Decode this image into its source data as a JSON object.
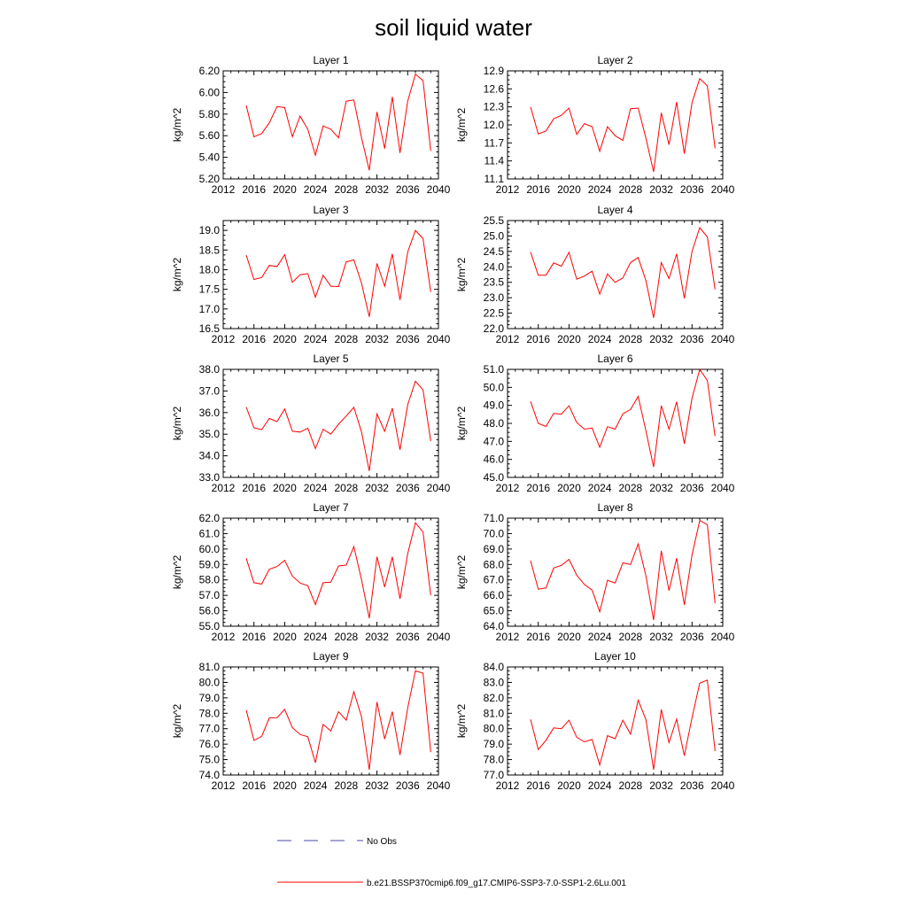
{
  "figure": {
    "title": "soil liquid water",
    "legend": [
      {
        "label": "No Obs",
        "color": "#4a4aa8",
        "style": "dashed"
      },
      {
        "label": "b.e21.BSSP370cmip6.f09_g17.CMIP6-SSP3-7.0-SSP1-2.6Lu.001",
        "color": "#ff0000",
        "style": "solid"
      }
    ]
  },
  "chart_data": [
    {
      "type": "line",
      "title": "Layer 1",
      "xlabel": "",
      "ylabel": "kg/m^2",
      "xlim": [
        2012,
        2040
      ],
      "xticks": [
        2012,
        2016,
        2020,
        2024,
        2028,
        2032,
        2036,
        2040
      ],
      "ylim": [
        5.2,
        6.2
      ],
      "yticks": [
        "5.20",
        "5.40",
        "5.60",
        "5.80",
        "6.00",
        "6.20"
      ],
      "series": [
        {
          "color": "#ff0000",
          "x": [
            2015,
            2016,
            2017,
            2018,
            2019,
            2020,
            2021,
            2022,
            2023,
            2024,
            2025,
            2026,
            2027,
            2028,
            2029,
            2030,
            2031,
            2032,
            2033,
            2034,
            2035,
            2036,
            2037,
            2038,
            2039
          ],
          "y": [
            5.88,
            5.59,
            5.62,
            5.72,
            5.87,
            5.86,
            5.59,
            5.78,
            5.66,
            5.42,
            5.69,
            5.66,
            5.58,
            5.92,
            5.93,
            5.58,
            5.28,
            5.82,
            5.48,
            5.96,
            5.44,
            5.92,
            6.17,
            6.11,
            5.46
          ]
        }
      ]
    },
    {
      "type": "line",
      "title": "Layer 2",
      "xlabel": "",
      "ylabel": "kg/m^2",
      "xlim": [
        2012,
        2040
      ],
      "xticks": [
        2012,
        2016,
        2020,
        2024,
        2028,
        2032,
        2036,
        2040
      ],
      "ylim": [
        11.1,
        12.9
      ],
      "yticks": [
        "11.1",
        "11.4",
        "11.7",
        "12.0",
        "12.3",
        "12.6",
        "12.9"
      ],
      "series": [
        {
          "color": "#ff0000",
          "x": [
            2015,
            2016,
            2017,
            2018,
            2019,
            2020,
            2021,
            2022,
            2023,
            2024,
            2025,
            2026,
            2027,
            2028,
            2029,
            2030,
            2031,
            2032,
            2033,
            2034,
            2035,
            2036,
            2037,
            2038,
            2039
          ],
          "y": [
            12.3,
            11.85,
            11.9,
            12.1,
            12.16,
            12.28,
            11.84,
            12.02,
            11.97,
            11.56,
            11.97,
            11.82,
            11.74,
            12.27,
            12.28,
            11.78,
            11.22,
            12.2,
            11.67,
            12.38,
            11.52,
            12.37,
            12.77,
            12.65,
            11.61
          ]
        }
      ]
    },
    {
      "type": "line",
      "title": "Layer 3",
      "xlabel": "",
      "ylabel": "kg/m^2",
      "xlim": [
        2012,
        2040
      ],
      "xticks": [
        2012,
        2016,
        2020,
        2024,
        2028,
        2032,
        2036,
        2040
      ],
      "ylim": [
        16.5,
        19.25
      ],
      "yticks": [
        "16.5",
        "17.0",
        "17.5",
        "18.0",
        "18.5",
        "19.0"
      ],
      "series": [
        {
          "color": "#ff0000",
          "x": [
            2015,
            2016,
            2017,
            2018,
            2019,
            2020,
            2021,
            2022,
            2023,
            2024,
            2025,
            2026,
            2027,
            2028,
            2029,
            2030,
            2031,
            2032,
            2033,
            2034,
            2035,
            2036,
            2037,
            2038,
            2039
          ],
          "y": [
            18.37,
            17.75,
            17.8,
            18.11,
            18.08,
            18.38,
            17.68,
            17.87,
            17.9,
            17.3,
            17.86,
            17.58,
            17.57,
            18.2,
            18.25,
            17.65,
            16.8,
            18.16,
            17.58,
            18.4,
            17.23,
            18.45,
            19.0,
            18.79,
            17.43
          ]
        }
      ]
    },
    {
      "type": "line",
      "title": "Layer 4",
      "xlabel": "",
      "ylabel": "kg/m^2",
      "xlim": [
        2012,
        2040
      ],
      "xticks": [
        2012,
        2016,
        2020,
        2024,
        2028,
        2032,
        2036,
        2040
      ],
      "ylim": [
        22.0,
        25.5
      ],
      "yticks": [
        "22.0",
        "22.5",
        "23.0",
        "23.5",
        "24.0",
        "24.5",
        "25.0",
        "25.5"
      ],
      "series": [
        {
          "color": "#ff0000",
          "x": [
            2015,
            2016,
            2017,
            2018,
            2019,
            2020,
            2021,
            2022,
            2023,
            2024,
            2025,
            2026,
            2027,
            2028,
            2029,
            2030,
            2031,
            2032,
            2033,
            2034,
            2035,
            2036,
            2037,
            2038,
            2039
          ],
          "y": [
            24.48,
            23.73,
            23.73,
            24.13,
            24.02,
            24.47,
            23.6,
            23.7,
            23.86,
            23.12,
            23.77,
            23.5,
            23.64,
            24.14,
            24.3,
            23.56,
            22.35,
            24.14,
            23.62,
            24.42,
            22.98,
            24.5,
            25.27,
            24.97,
            23.27
          ]
        }
      ]
    },
    {
      "type": "line",
      "title": "Layer 5",
      "xlabel": "",
      "ylabel": "kg/m^2",
      "xlim": [
        2012,
        2040
      ],
      "xticks": [
        2012,
        2016,
        2020,
        2024,
        2028,
        2032,
        2036,
        2040
      ],
      "ylim": [
        33.0,
        38.0
      ],
      "yticks": [
        "33.0",
        "34.0",
        "35.0",
        "36.0",
        "37.0",
        "38.0"
      ],
      "series": [
        {
          "color": "#ff0000",
          "x": [
            2015,
            2016,
            2017,
            2018,
            2019,
            2020,
            2021,
            2022,
            2023,
            2024,
            2025,
            2026,
            2027,
            2028,
            2029,
            2030,
            2031,
            2032,
            2033,
            2034,
            2035,
            2036,
            2037,
            2038,
            2039
          ],
          "y": [
            36.26,
            35.3,
            35.21,
            35.73,
            35.58,
            36.17,
            35.14,
            35.1,
            35.28,
            34.33,
            35.23,
            35.0,
            35.46,
            35.84,
            36.24,
            35.1,
            33.3,
            35.94,
            35.13,
            36.2,
            34.28,
            36.36,
            37.45,
            37.05,
            34.68
          ]
        }
      ]
    },
    {
      "type": "line",
      "title": "Layer 6",
      "xlabel": "",
      "ylabel": "kg/m^2",
      "xlim": [
        2012,
        2040
      ],
      "xticks": [
        2012,
        2016,
        2020,
        2024,
        2028,
        2032,
        2036,
        2040
      ],
      "ylim": [
        45.0,
        51.0
      ],
      "yticks": [
        "45.0",
        "46.0",
        "47.0",
        "48.0",
        "49.0",
        "50.0",
        "51.0"
      ],
      "series": [
        {
          "color": "#ff0000",
          "x": [
            2015,
            2016,
            2017,
            2018,
            2019,
            2020,
            2021,
            2022,
            2023,
            2024,
            2025,
            2026,
            2027,
            2028,
            2029,
            2030,
            2031,
            2032,
            2033,
            2034,
            2035,
            2036,
            2037,
            2038,
            2039
          ],
          "y": [
            49.22,
            48.0,
            47.83,
            48.55,
            48.51,
            48.98,
            48.05,
            47.68,
            47.74,
            46.67,
            47.82,
            47.68,
            48.53,
            48.77,
            49.5,
            47.59,
            45.58,
            48.99,
            47.67,
            49.2,
            46.87,
            49.4,
            51.0,
            50.38,
            47.29
          ]
        }
      ]
    },
    {
      "type": "line",
      "title": "Layer 7",
      "xlabel": "",
      "ylabel": "kg/m^2",
      "xlim": [
        2012,
        2040
      ],
      "xticks": [
        2012,
        2016,
        2020,
        2024,
        2028,
        2032,
        2036,
        2040
      ],
      "ylim": [
        55.0,
        62.0
      ],
      "yticks": [
        "55.0",
        "56.0",
        "57.0",
        "58.0",
        "59.0",
        "60.0",
        "61.0",
        "62.0"
      ],
      "series": [
        {
          "color": "#ff0000",
          "x": [
            2015,
            2016,
            2017,
            2018,
            2019,
            2020,
            2021,
            2022,
            2023,
            2024,
            2025,
            2026,
            2027,
            2028,
            2029,
            2030,
            2031,
            2032,
            2033,
            2034,
            2035,
            2036,
            2037,
            2038,
            2039
          ],
          "y": [
            59.4,
            57.82,
            57.73,
            58.69,
            58.87,
            59.27,
            58.24,
            57.8,
            57.62,
            56.4,
            57.82,
            57.85,
            58.9,
            58.96,
            60.16,
            58.0,
            55.52,
            59.5,
            57.54,
            59.49,
            56.78,
            59.7,
            61.7,
            61.1,
            57.0
          ]
        }
      ]
    },
    {
      "type": "line",
      "title": "Layer 8",
      "xlabel": "",
      "ylabel": "kg/m^2",
      "xlim": [
        2012,
        2040
      ],
      "xticks": [
        2012,
        2016,
        2020,
        2024,
        2028,
        2032,
        2036,
        2040
      ],
      "ylim": [
        64.0,
        71.0
      ],
      "yticks": [
        "64.0",
        "65.0",
        "66.0",
        "67.0",
        "68.0",
        "69.0",
        "70.0",
        "71.0"
      ],
      "series": [
        {
          "color": "#ff0000",
          "x": [
            2015,
            2016,
            2017,
            2018,
            2019,
            2020,
            2021,
            2022,
            2023,
            2024,
            2025,
            2026,
            2027,
            2028,
            2029,
            2030,
            2031,
            2032,
            2033,
            2034,
            2035,
            2036,
            2037,
            2038,
            2039
          ],
          "y": [
            68.25,
            66.4,
            66.48,
            67.77,
            67.94,
            68.33,
            67.31,
            66.7,
            66.34,
            64.93,
            66.98,
            66.8,
            68.1,
            68.0,
            69.33,
            67.28,
            64.4,
            68.88,
            66.31,
            68.4,
            65.38,
            68.62,
            70.85,
            70.58,
            65.48
          ]
        }
      ]
    },
    {
      "type": "line",
      "title": "Layer 9",
      "xlabel": "",
      "ylabel": "kg/m^2",
      "xlim": [
        2012,
        2040
      ],
      "xticks": [
        2012,
        2016,
        2020,
        2024,
        2028,
        2032,
        2036,
        2040
      ],
      "ylim": [
        74.0,
        81.0
      ],
      "yticks": [
        "74.0",
        "75.0",
        "76.0",
        "77.0",
        "78.0",
        "79.0",
        "80.0",
        "81.0"
      ],
      "series": [
        {
          "color": "#ff0000",
          "x": [
            2015,
            2016,
            2017,
            2018,
            2019,
            2020,
            2021,
            2022,
            2023,
            2024,
            2025,
            2026,
            2027,
            2028,
            2029,
            2030,
            2031,
            2032,
            2033,
            2034,
            2035,
            2036,
            2037,
            2038,
            2039
          ],
          "y": [
            78.2,
            76.25,
            76.5,
            77.7,
            77.72,
            78.25,
            77.07,
            76.63,
            76.48,
            74.8,
            77.28,
            76.85,
            78.1,
            77.55,
            79.4,
            77.77,
            74.35,
            78.73,
            76.33,
            78.1,
            75.3,
            78.35,
            80.75,
            80.6,
            75.48
          ]
        }
      ]
    },
    {
      "type": "line",
      "title": "Layer 10",
      "xlabel": "",
      "ylabel": "kg/m^2",
      "xlim": [
        2012,
        2040
      ],
      "xticks": [
        2012,
        2016,
        2020,
        2024,
        2028,
        2032,
        2036,
        2040
      ],
      "ylim": [
        77.0,
        84.0
      ],
      "yticks": [
        "77.0",
        "78.0",
        "79.0",
        "80.0",
        "81.0",
        "82.0",
        "83.0",
        "84.0"
      ],
      "series": [
        {
          "color": "#ff0000",
          "x": [
            2015,
            2016,
            2017,
            2018,
            2019,
            2020,
            2021,
            2022,
            2023,
            2024,
            2025,
            2026,
            2027,
            2028,
            2029,
            2030,
            2031,
            2032,
            2033,
            2034,
            2035,
            2036,
            2037,
            2038,
            2039
          ],
          "y": [
            80.6,
            78.65,
            79.25,
            80.05,
            80.0,
            80.55,
            79.45,
            79.15,
            79.3,
            77.65,
            79.55,
            79.35,
            80.55,
            79.65,
            81.85,
            80.6,
            77.35,
            81.25,
            79.1,
            80.62,
            78.25,
            80.72,
            82.95,
            83.15,
            78.55
          ]
        }
      ]
    }
  ]
}
